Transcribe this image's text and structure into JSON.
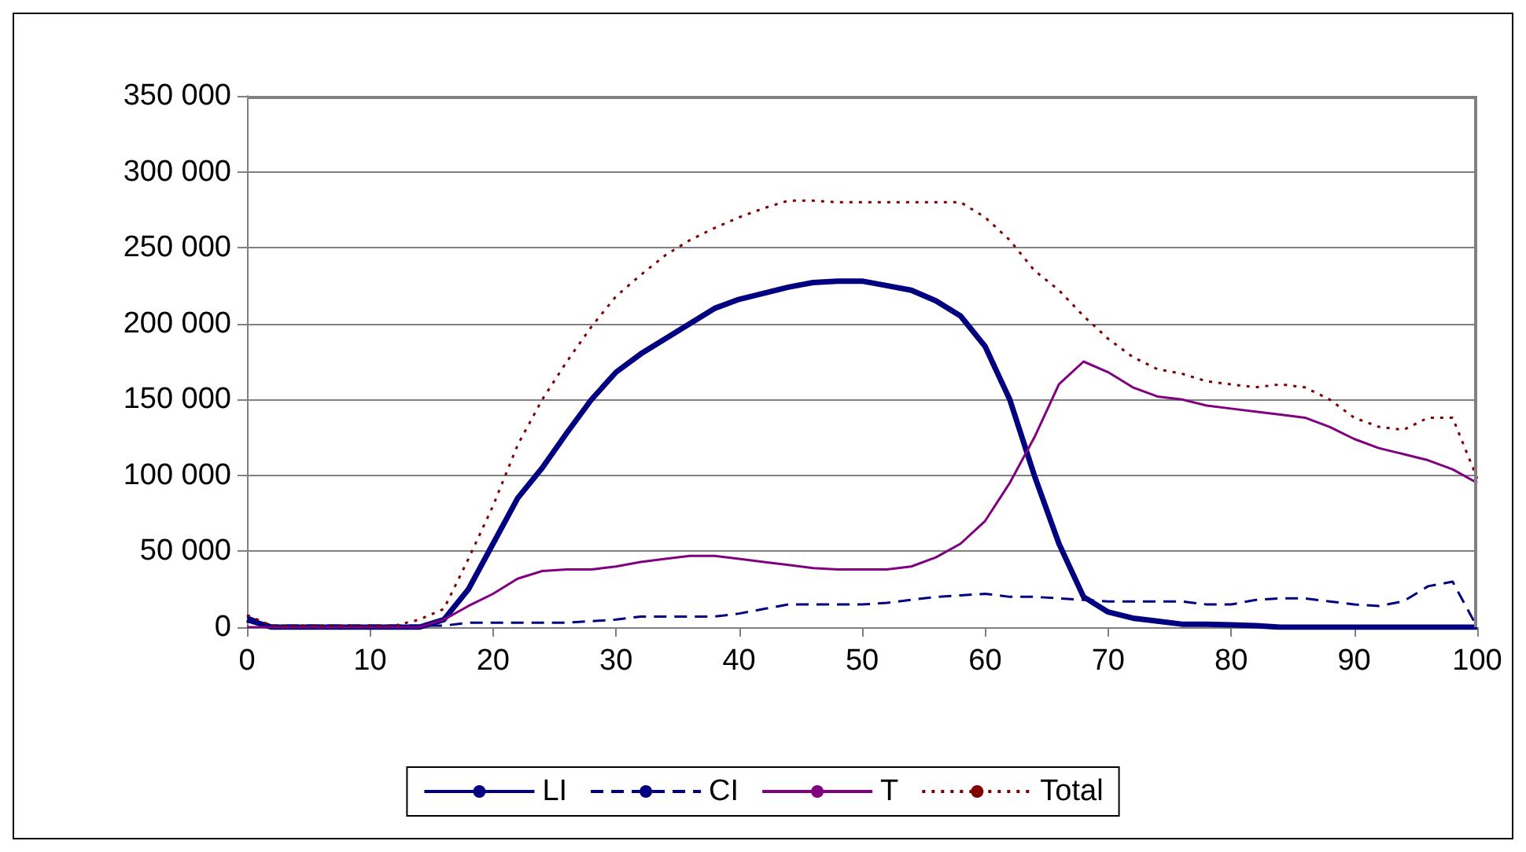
{
  "chart_data": {
    "type": "line",
    "x": [
      0,
      2,
      4,
      6,
      8,
      10,
      12,
      14,
      16,
      18,
      20,
      22,
      24,
      26,
      28,
      30,
      32,
      34,
      36,
      38,
      40,
      42,
      44,
      46,
      48,
      50,
      52,
      54,
      56,
      58,
      60,
      62,
      64,
      66,
      68,
      70,
      72,
      74,
      76,
      78,
      80,
      82,
      84,
      86,
      88,
      90,
      92,
      94,
      96,
      98,
      100
    ],
    "series": [
      {
        "name": "LI",
        "color": "#000080",
        "line_style": "solid",
        "values": [
          5000,
          0,
          0,
          0,
          0,
          0,
          0,
          0,
          5000,
          25000,
          55000,
          85000,
          105000,
          128000,
          150000,
          168000,
          180000,
          190000,
          200000,
          210000,
          216000,
          220000,
          224000,
          227000,
          228000,
          228000,
          225000,
          222000,
          215000,
          205000,
          185000,
          150000,
          100000,
          55000,
          20000,
          10000,
          6000,
          4000,
          2000,
          2000,
          1500,
          1000,
          0,
          0,
          0,
          0,
          0,
          0,
          0,
          0,
          0
        ]
      },
      {
        "name": "CI",
        "color": "#000080",
        "line_style": "dashed",
        "values": [
          7000,
          1000,
          1000,
          1000,
          1000,
          1000,
          1000,
          1000,
          1000,
          3000,
          3000,
          3000,
          3000,
          3000,
          4000,
          5000,
          7000,
          7000,
          7000,
          7000,
          9000,
          12000,
          15000,
          15000,
          15000,
          15000,
          16000,
          18000,
          20000,
          21000,
          22000,
          20000,
          20000,
          19000,
          18000,
          17000,
          17000,
          17000,
          17000,
          15000,
          15000,
          18000,
          19000,
          19000,
          17000,
          15000,
          14000,
          17000,
          27000,
          30000,
          0
        ]
      },
      {
        "name": "T",
        "color": "#800080",
        "line_style": "solid",
        "values": [
          0,
          0,
          0,
          0,
          0,
          0,
          0,
          0,
          5000,
          14000,
          22000,
          32000,
          37000,
          38000,
          38000,
          40000,
          43000,
          45000,
          47000,
          47000,
          45000,
          43000,
          41000,
          39000,
          38000,
          38000,
          38000,
          40000,
          46000,
          55000,
          70000,
          95000,
          125000,
          160000,
          175000,
          168000,
          158000,
          152000,
          150000,
          146000,
          144000,
          142000,
          140000,
          138000,
          132000,
          124000,
          118000,
          114000,
          110000,
          104000,
          95000
        ]
      },
      {
        "name": "Total",
        "color": "#800000",
        "line_style": "dotted",
        "values": [
          8000,
          1000,
          1000,
          1000,
          1000,
          1000,
          1000,
          5000,
          12000,
          45000,
          80000,
          120000,
          150000,
          175000,
          198000,
          218000,
          232000,
          245000,
          255000,
          263000,
          270000,
          276000,
          281000,
          281000,
          280000,
          280000,
          280000,
          280000,
          280000,
          280000,
          270000,
          255000,
          235000,
          222000,
          205000,
          190000,
          178000,
          170000,
          167000,
          162000,
          160000,
          158000,
          160000,
          158000,
          150000,
          138000,
          132000,
          130000,
          138000,
          138000,
          98000
        ]
      }
    ],
    "xlim": [
      0,
      100
    ],
    "xticks": [
      0,
      10,
      20,
      30,
      40,
      50,
      60,
      70,
      80,
      90,
      100
    ],
    "ylim": [
      0,
      350000
    ],
    "yticks": [
      0,
      {
        "value": 50000,
        "label": "50 000"
      },
      {
        "value": 100000,
        "label": "100 000"
      },
      {
        "value": 150000,
        "label": "150 000"
      },
      {
        "value": 200000,
        "label": "200 000"
      },
      {
        "value": 250000,
        "label": "250 000"
      },
      {
        "value": 300000,
        "label": "300 000"
      },
      {
        "value": 350000,
        "label": "350 000"
      }
    ],
    "grid": "y",
    "legend": "bottom",
    "marker": "none"
  }
}
